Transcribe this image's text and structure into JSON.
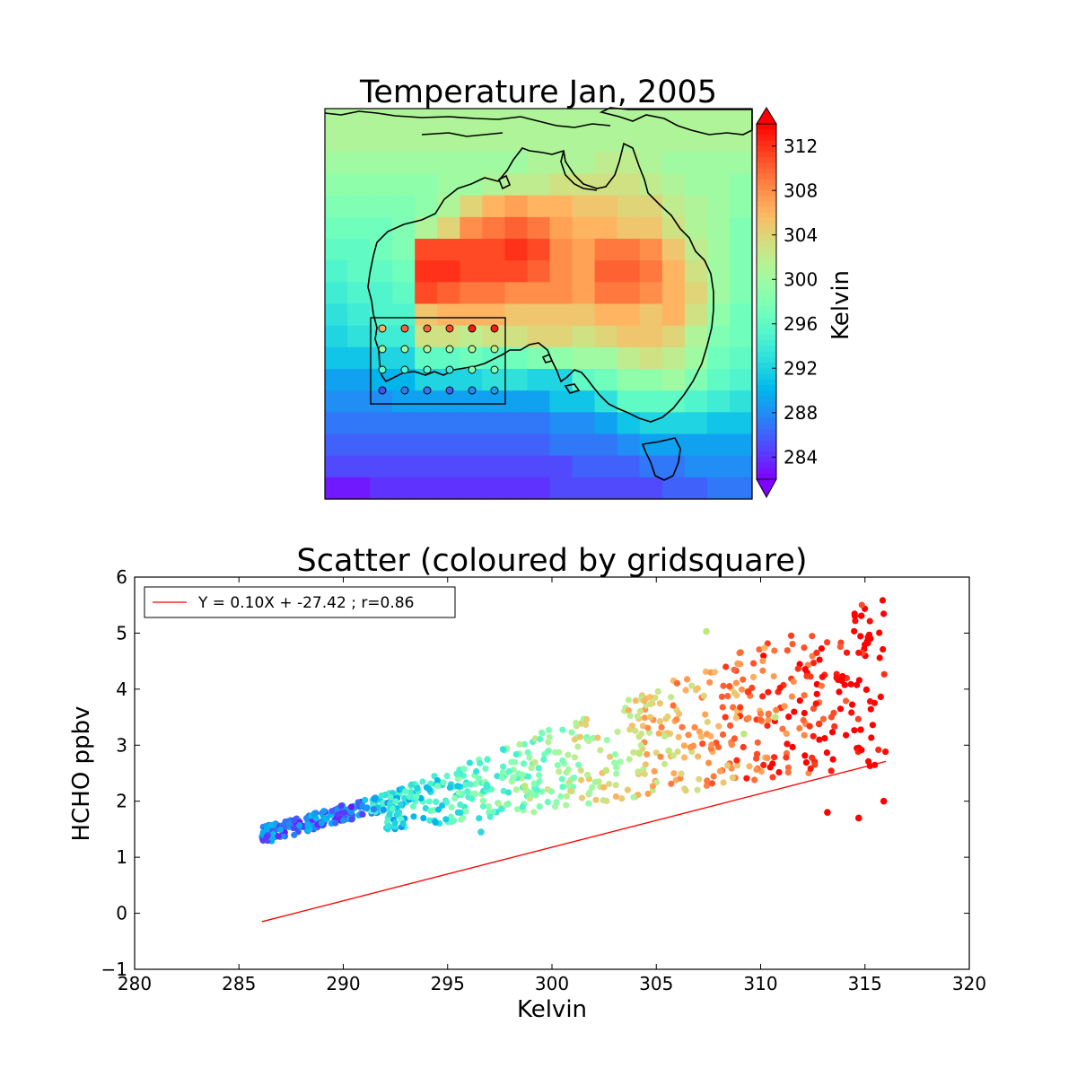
{
  "chart_data": [
    {
      "type": "heatmap",
      "title": "Temperature Jan, 2005",
      "colorbar": {
        "label": "Kelvin",
        "ticks": [
          284,
          288,
          292,
          296,
          300,
          304,
          308,
          312
        ],
        "range": [
          282,
          314
        ],
        "extend": "both",
        "colormap": "rainbow"
      },
      "grid_rows": 18,
      "grid_cols": 19,
      "grid_values": [
        [
          301,
          301,
          301,
          301,
          301,
          301,
          301,
          301,
          301,
          301,
          301,
          301,
          301,
          301,
          301,
          301,
          301,
          301,
          301
        ],
        [
          301,
          301,
          301,
          301,
          301,
          301,
          301,
          301,
          301,
          301,
          301,
          301,
          301,
          301,
          301,
          301,
          301,
          301,
          301
        ],
        [
          300,
          300,
          300,
          300,
          300,
          300,
          300,
          300,
          300,
          301,
          301,
          301,
          302,
          302,
          301,
          300,
          300,
          300,
          300
        ],
        [
          299,
          299,
          299,
          299,
          299,
          300,
          300,
          301,
          302,
          302,
          303,
          303,
          303,
          303,
          302,
          301,
          300,
          300,
          299
        ],
        [
          298,
          298,
          298,
          298,
          299,
          301,
          304,
          306,
          307,
          306,
          306,
          305,
          305,
          304,
          304,
          302,
          301,
          300,
          299
        ],
        [
          297,
          297,
          297,
          298,
          301,
          304,
          308,
          309,
          310,
          309,
          307,
          306,
          306,
          305,
          305,
          303,
          301,
          300,
          298
        ],
        [
          296,
          296,
          297,
          298,
          311,
          311,
          311,
          311,
          312,
          311,
          308,
          307,
          309,
          309,
          308,
          305,
          302,
          300,
          298
        ],
        [
          295,
          296,
          296,
          297,
          312,
          312,
          311,
          311,
          311,
          310,
          308,
          307,
          310,
          310,
          309,
          306,
          303,
          300,
          298
        ],
        [
          294,
          295,
          295,
          296,
          311,
          310,
          309,
          309,
          308,
          308,
          308,
          307,
          309,
          309,
          308,
          306,
          304,
          300,
          298
        ],
        [
          293,
          294,
          295,
          295,
          305,
          306,
          306,
          306,
          305,
          305,
          305,
          305,
          306,
          306,
          305,
          306,
          303,
          299,
          297
        ],
        [
          292,
          293,
          294,
          294,
          303,
          303,
          302,
          303,
          303,
          304,
          304,
          303,
          304,
          305,
          305,
          304,
          301,
          298,
          297
        ],
        [
          291,
          291,
          292,
          292,
          296,
          296,
          297,
          296,
          297,
          298,
          299,
          300,
          300,
          302,
          303,
          302,
          300,
          297,
          296
        ],
        [
          289,
          289,
          290,
          290,
          292,
          292,
          292,
          293,
          293,
          292,
          292,
          296,
          297,
          299,
          299,
          300,
          298,
          296,
          295
        ],
        [
          288,
          288,
          288,
          289,
          289,
          289,
          289,
          289,
          289,
          289,
          291,
          291,
          293,
          296,
          296,
          296,
          295,
          294,
          293
        ],
        [
          287,
          287,
          287,
          287,
          287,
          287,
          287,
          287,
          287,
          287,
          288,
          288,
          289,
          291,
          292,
          292,
          292,
          291,
          291
        ],
        [
          286,
          286,
          286,
          286,
          286,
          286,
          286,
          286,
          286,
          286,
          287,
          287,
          287,
          288,
          289,
          289,
          289,
          289,
          289
        ],
        [
          285,
          285,
          285,
          285,
          285,
          285,
          285,
          285,
          285,
          285,
          285,
          286,
          286,
          286,
          287,
          287,
          288,
          288,
          288
        ],
        [
          283,
          283,
          284,
          284,
          284,
          284,
          284,
          284,
          284,
          284,
          285,
          285,
          285,
          285,
          285,
          286,
          286,
          287,
          287
        ]
      ],
      "station_points": [
        [
          306,
          310,
          310,
          311,
          313,
          313
        ],
        [
          300,
          300,
          301,
          300,
          301,
          302
        ],
        [
          296,
          295,
          296,
          294,
          298,
          298
        ],
        [
          285,
          287,
          287,
          286,
          288,
          289
        ]
      ]
    },
    {
      "type": "scatter",
      "title": "Scatter (coloured by gridsquare)",
      "xlabel": "Kelvin",
      "ylabel": "HCHO ppbv",
      "xlim": [
        280,
        320
      ],
      "ylim": [
        -1,
        6
      ],
      "xticks": [
        280,
        285,
        290,
        295,
        300,
        305,
        310,
        315,
        320
      ],
      "yticks": [
        -1,
        0,
        1,
        2,
        3,
        4,
        5,
        6
      ],
      "legend": {
        "label": "Y = 0.10X + -27.42 ; r=0.86",
        "location": "upper left",
        "color": "#ff0000"
      },
      "regression_line": {
        "x": [
          286.1,
          316.0
        ],
        "y": [
          -0.15,
          2.71
        ],
        "color": "#ff0000"
      },
      "highlighted_points": [
        {
          "x": 307.4,
          "y": 5.03,
          "color": "#bfe87a"
        },
        {
          "x": 309.4,
          "y": 3.95,
          "color": "#ff3a1c"
        },
        {
          "x": 310.7,
          "y": 3.5,
          "color": "#bfe87a"
        },
        {
          "x": 312.8,
          "y": 3.38,
          "color": "#ff3a1c"
        },
        {
          "x": 309.2,
          "y": 3.2,
          "color": "#bfe87a"
        },
        {
          "x": 314.7,
          "y": 1.7,
          "color": "#ff0000"
        },
        {
          "x": 315.9,
          "y": 2.0,
          "color": "#ff0000"
        },
        {
          "x": 313.2,
          "y": 1.8,
          "color": "#ff0000"
        },
        {
          "x": 298.7,
          "y": 2.27,
          "color": "#bfe87a"
        },
        {
          "x": 302.6,
          "y": 2.55,
          "color": "#bfe87a"
        },
        {
          "x": 304.2,
          "y": 2.85,
          "color": "#bfe87a"
        },
        {
          "x": 305.6,
          "y": 2.9,
          "color": "#bfe87a"
        },
        {
          "x": 296.6,
          "y": 1.45,
          "color": "#37d3e0"
        }
      ],
      "generator": {
        "slope": 0.1,
        "intercept": -27.42,
        "x_min": 286.1,
        "x_max": 316.0,
        "count": 900
      }
    }
  ]
}
